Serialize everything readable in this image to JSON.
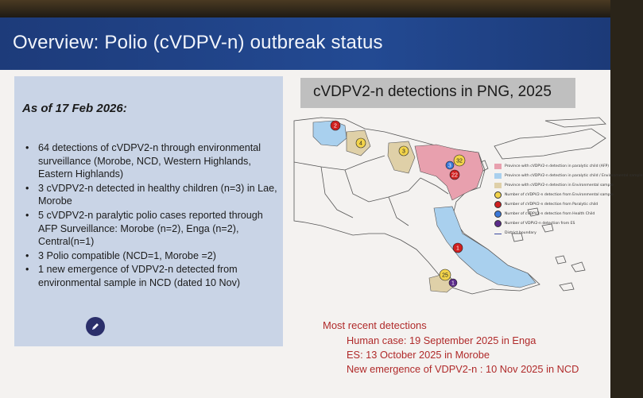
{
  "slide": {
    "title": "Overview: Polio (cVDPV-n) outbreak status",
    "as_of": "As of 17 Feb 2026:",
    "bullets": [
      "64 detections of cVDPV2-n through environmental surveillance  (Morobe, NCD, Western Highlands, Eastern Highlands)",
      "3 cVDPV2-n detected in healthy children (n=3) in Lae, Morobe",
      "5 cVDPV2-n paralytic polio cases  reported through AFP Surveillance: Morobe (n=2), Enga (n=2), Central(n=1)",
      "3 Polio compatible (NCD=1, Morobe =2)",
      "1 new emergence of VDPV2-n detected from environmental sample in NCD (dated 10 Nov)"
    ]
  },
  "map": {
    "title": "cVDPV2-n detections in PNG, 2025",
    "markers": [
      "2",
      "4",
      "3",
      "32",
      "3",
      "22",
      "1",
      "25",
      "1"
    ],
    "legend": [
      "Province with cVDPV2-n detection in paralytic child (AFP)",
      "Province with cVDPV2-n detection in paralytic child / Environmental sample",
      "Province with cVDPV2-n detection in Environmental sample",
      "Number of cVDPV2-n detection from Environmental sample",
      "Number of cVDPV2-n detection from Paralytic child",
      "Number of cVDPV2-n detection from Health Child",
      "Number of VDPV2-n detection from ES",
      "District boundary"
    ],
    "colors": {
      "paralytic": "#e8a0ae",
      "paralytic_env": "#a9d0ee",
      "env": "#dfd0a8",
      "env_marker": "#f2d34a",
      "afp_marker": "#d02020",
      "health_marker": "#3a78d8",
      "es_marker": "#5b2b8a"
    }
  },
  "recent": {
    "heading": "Most recent  detections",
    "lines": [
      "Human case: 19 September 2025 in Enga",
      "ES: 13 October 2025 in Morobe",
      "New emergence of VDPV2-n : 10 Nov 2025  in NCD"
    ]
  }
}
